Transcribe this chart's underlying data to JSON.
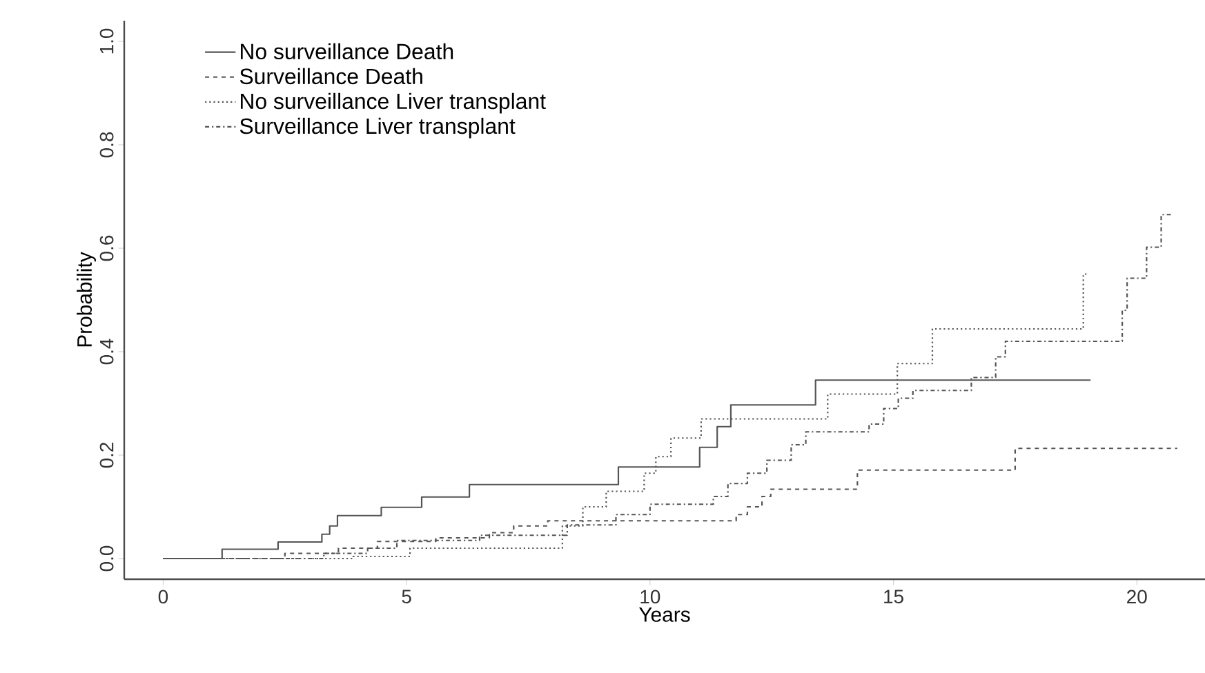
{
  "chart_data": {
    "type": "step",
    "xlabel": "Years",
    "ylabel": "Probability",
    "xlim": [
      -0.8,
      21.4
    ],
    "ylim": [
      -0.04,
      1.04
    ],
    "xticks": [
      0,
      5,
      10,
      15,
      20
    ],
    "yticks": [
      {
        "value": 0,
        "label": "0.0"
      },
      {
        "value": 0.2,
        "label": "0.2"
      },
      {
        "value": 0.4,
        "label": "0.4"
      },
      {
        "value": 0.6,
        "label": "0.6"
      },
      {
        "value": 0.8,
        "label": "0.8"
      },
      {
        "value": 1,
        "label": "1.0"
      }
    ],
    "grid": false,
    "legend": "top left",
    "marker": "none",
    "series": [
      {
        "name": "No surveillance Death",
        "color": "#555555",
        "line_style": "solid",
        "x": [
          0,
          1.21,
          2.36,
          3.26,
          3.42,
          3.58,
          4.48,
          5.31,
          6.29,
          9.35,
          11.02,
          11.38,
          11.66,
          13.4,
          19.05
        ],
        "values": [
          0,
          0.018,
          0.032,
          0.047,
          0.063,
          0.083,
          0.099,
          0.119,
          0.143,
          0.177,
          0.215,
          0.255,
          0.297,
          0.345,
          0.345
        ]
      },
      {
        "name": "Surveillance Death",
        "color": "#555555",
        "line_style": "dashed",
        "x": [
          0,
          2.5,
          3.6,
          4.4,
          5.6,
          6.7,
          7.2,
          7.9,
          11.77,
          12.0,
          12.3,
          12.48,
          14.26,
          17.5,
          20.83
        ],
        "values": [
          0,
          0.01,
          0.02,
          0.033,
          0.04,
          0.05,
          0.063,
          0.073,
          0.085,
          0.1,
          0.12,
          0.134,
          0.171,
          0.213,
          0.213
        ]
      },
      {
        "name": "No surveillance Liver transplant",
        "color": "#555555",
        "line_style": "dotted",
        "x": [
          0,
          3.9,
          5.07,
          8.2,
          8.62,
          9.1,
          9.88,
          10.12,
          10.43,
          11.05,
          13.65,
          15.08,
          15.8,
          18.9,
          19.0
        ],
        "values": [
          0,
          0.004,
          0.02,
          0.063,
          0.1,
          0.13,
          0.165,
          0.197,
          0.233,
          0.27,
          0.318,
          0.377,
          0.444,
          0.55,
          0.55
        ]
      },
      {
        "name": "Surveillance Liver transplant",
        "color": "#555555",
        "line_style": "dashdot",
        "x": [
          0,
          3.3,
          4.2,
          4.8,
          6.5,
          8.3,
          9.3,
          10.0,
          11.3,
          11.6,
          12.0,
          12.4,
          12.9,
          13.2,
          14.5,
          14.8,
          15.1,
          15.4,
          16.6,
          17.1,
          17.3,
          19.7,
          19.8,
          20.2,
          20.5,
          20.7
        ],
        "values": [
          0,
          0.01,
          0.02,
          0.035,
          0.045,
          0.065,
          0.085,
          0.105,
          0.12,
          0.145,
          0.165,
          0.19,
          0.22,
          0.245,
          0.26,
          0.29,
          0.31,
          0.325,
          0.35,
          0.39,
          0.42,
          0.48,
          0.542,
          0.602,
          0.665,
          0.665
        ]
      }
    ]
  }
}
